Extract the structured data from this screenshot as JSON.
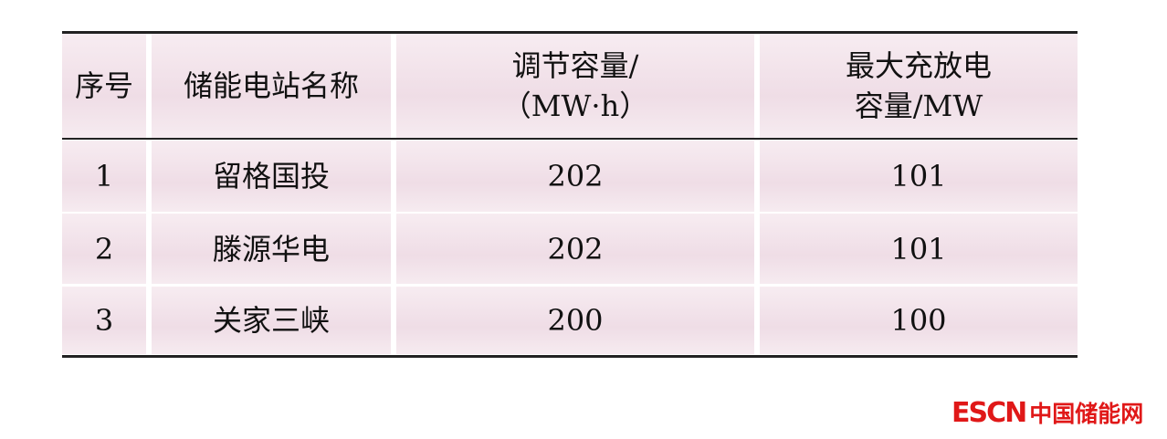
{
  "table": {
    "headers": [
      "序号",
      "储能电站名称",
      "调节容量/\n（MW·h）",
      "最大充放电\n容量/MW"
    ],
    "rows": [
      [
        "1",
        "留格国投",
        "202",
        "101"
      ],
      [
        "2",
        "滕源华电",
        "202",
        "101"
      ],
      [
        "3",
        "关家三峡",
        "200",
        "100"
      ]
    ]
  },
  "logo": {
    "en": "ESCN",
    "cn": "中国储能网"
  },
  "colors": {
    "cell_bg": "#f2e3ea",
    "logo": "#e01818"
  }
}
